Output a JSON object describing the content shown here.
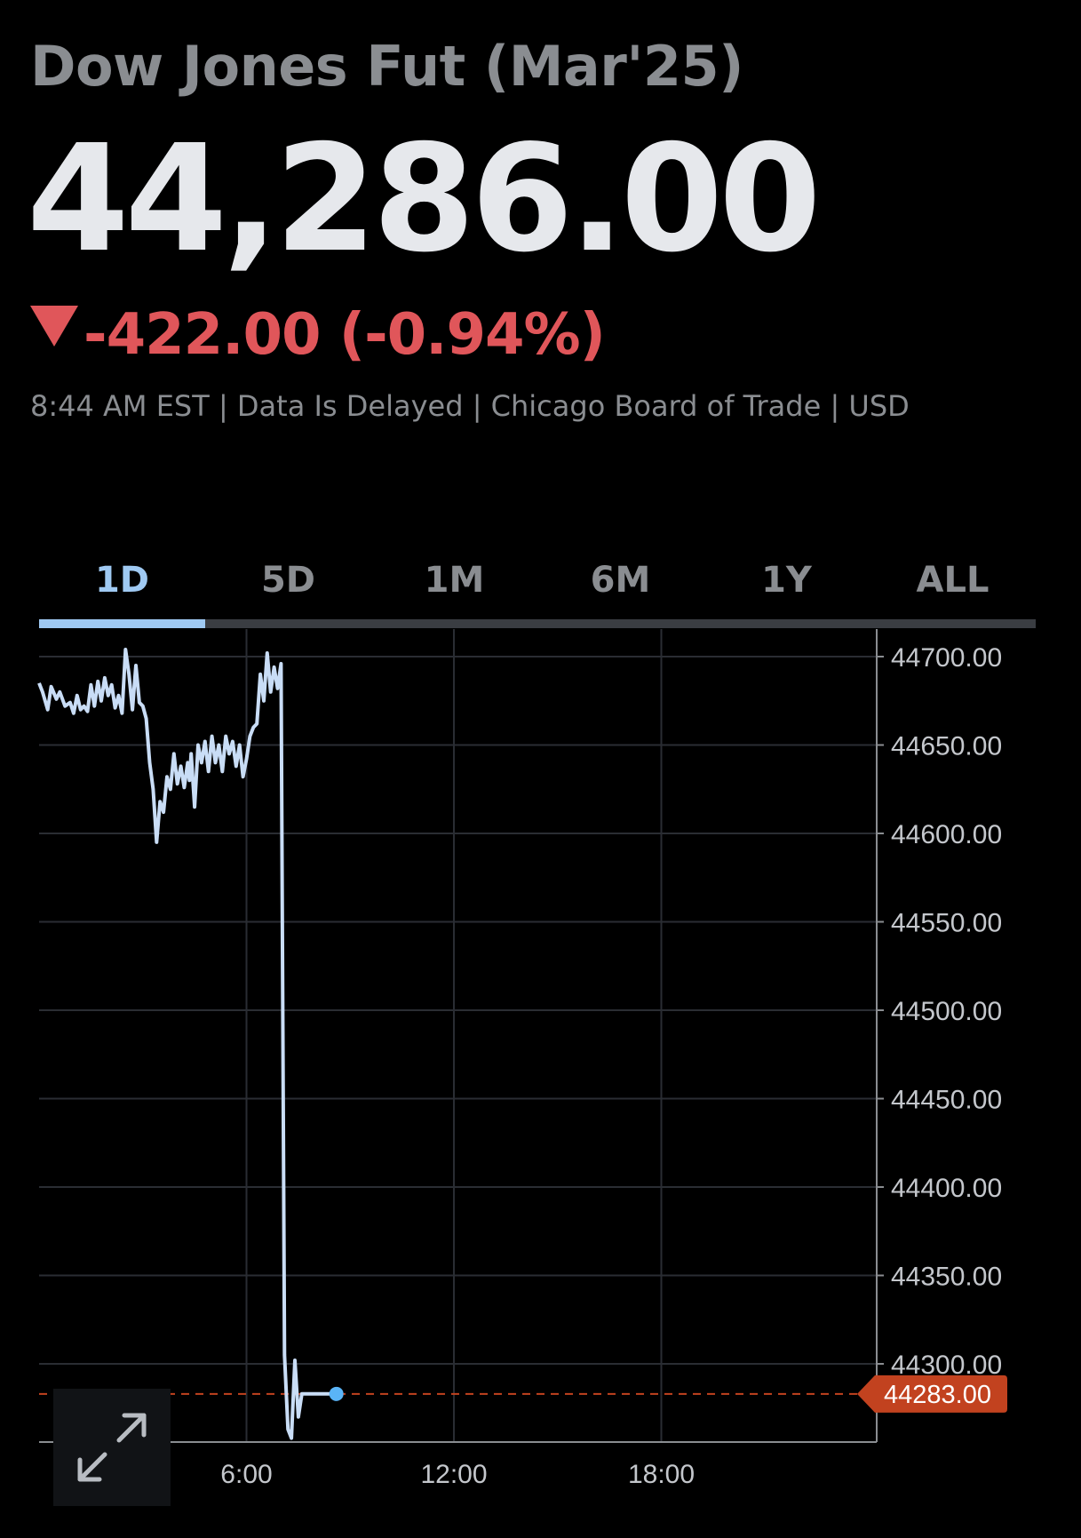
{
  "header": {
    "title": "Dow Jones Fut (Mar'25)",
    "price": "44,286.00",
    "change": "-422.00 (-0.94%)",
    "meta": "8:44 AM EST | Data Is Delayed | Chicago Board of Trade | USD"
  },
  "tabs": [
    {
      "label": "1D",
      "active": true
    },
    {
      "label": "5D",
      "active": false
    },
    {
      "label": "1M",
      "active": false
    },
    {
      "label": "6M",
      "active": false
    },
    {
      "label": "1Y",
      "active": false
    },
    {
      "label": "ALL",
      "active": false
    }
  ],
  "colors": {
    "line": "#c9ddf6",
    "accent": "#9fc9f2",
    "negative": "#e0565a",
    "marker": "#c2421f",
    "dot": "#5ab4f7"
  },
  "icons": {
    "expand": "expand-arrows-icon"
  },
  "chart_data": {
    "type": "line",
    "x_ticks": [
      6,
      12,
      18
    ],
    "x_tick_labels": [
      "6:00",
      "12:00",
      "18:00"
    ],
    "xlim": [
      0,
      24
    ],
    "ylim": [
      44240,
      44715
    ],
    "y_ticks": [
      44700,
      44650,
      44600,
      44550,
      44500,
      44450,
      44400,
      44350,
      44300
    ],
    "y_tick_labels": [
      "44700.00",
      "44650.00",
      "44600.00",
      "44550.00",
      "44500.00",
      "44450.00",
      "44400.00",
      "44350.00",
      "44300.00"
    ],
    "grid": true,
    "current_value": 44283,
    "current_label": "44283.00",
    "series": [
      {
        "x": [
          0.0,
          0.1,
          0.25,
          0.35,
          0.5,
          0.6,
          0.75,
          0.9,
          1.0,
          1.1,
          1.2,
          1.3,
          1.4,
          1.5,
          1.6,
          1.7,
          1.8,
          1.9,
          2.0,
          2.1,
          2.2,
          2.3,
          2.4,
          2.5,
          2.6,
          2.7,
          2.8,
          2.9,
          3.0,
          3.1,
          3.2,
          3.3,
          3.4,
          3.5,
          3.6,
          3.7,
          3.8,
          3.9,
          4.0,
          4.1,
          4.2,
          4.3,
          4.35,
          4.4,
          4.5,
          4.6,
          4.7,
          4.8,
          4.9,
          5.0,
          5.1,
          5.2,
          5.3,
          5.4,
          5.5,
          5.6,
          5.7,
          5.8,
          5.9,
          6.0,
          6.1,
          6.2,
          6.3,
          6.4,
          6.5,
          6.6,
          6.7,
          6.8,
          6.9,
          7.0,
          7.1,
          7.2,
          7.3,
          7.4,
          7.5,
          7.6,
          7.7,
          7.8,
          7.9,
          8.0,
          8.1,
          8.2,
          8.3,
          8.35,
          8.4,
          8.5,
          8.6,
          8.7,
          8.8
        ],
        "y": [
          44685,
          44680,
          44670,
          44683,
          44676,
          44680,
          44672,
          44674,
          44668,
          44678,
          44670,
          44672,
          44669,
          44684,
          44672,
          44686,
          44675,
          44688,
          44678,
          44684,
          44671,
          44678,
          44668,
          44704,
          44690,
          44670,
          44695,
          44674,
          44672,
          44665,
          44640,
          44625,
          44595,
          44618,
          44612,
          44632,
          44625,
          44645,
          44628,
          44638,
          44626,
          44640,
          44630,
          44645,
          44615,
          44650,
          44640,
          44652,
          44635,
          44655,
          44640,
          44650,
          44635,
          44655,
          44645,
          44652,
          44638,
          44650,
          44632,
          44642,
          44655,
          44660,
          44662,
          44690,
          44675,
          44702,
          44680,
          44694,
          44682,
          44696,
          44305,
          44263,
          44258,
          44302,
          44270,
          44283,
          44283,
          44283,
          44283,
          44283,
          44283,
          44283,
          44283,
          44283,
          44283,
          44283,
          44283,
          44283,
          44283
        ]
      }
    ]
  }
}
